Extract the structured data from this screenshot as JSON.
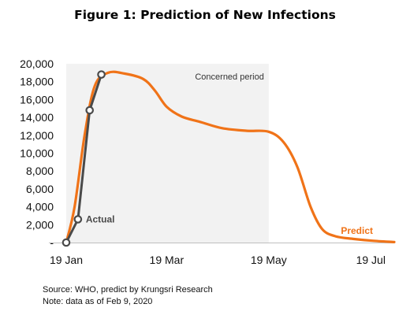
{
  "title": "Figure 1: Prediction of New Infections",
  "source": "Source: WHO, predict by Krungsri Research",
  "note": "Note: data as of Feb 9, 2020",
  "colors": {
    "actual": "#4a4a4a",
    "predict": "#f07318",
    "shade": "#f2f2f2",
    "axis": "#bfbfbf"
  },
  "chart_data": {
    "type": "line",
    "xaxis": "date",
    "xlim": [
      "2020-01-19",
      "2020-08-02"
    ],
    "ylim": [
      0,
      20000
    ],
    "yticks": [
      0,
      2000,
      4000,
      6000,
      8000,
      10000,
      12000,
      14000,
      16000,
      18000,
      20000
    ],
    "ytick_labels": [
      "-",
      "2,000",
      "4,000",
      "6,000",
      "8,000",
      "10,000",
      "12,000",
      "14,000",
      "16,000",
      "18,000",
      "20,000"
    ],
    "xticks": [
      "2020-01-19",
      "2020-03-19",
      "2020-05-19",
      "2020-07-19"
    ],
    "xtick_labels": [
      "19 Jan",
      "19 Mar",
      "19 May",
      "19 Jul"
    ],
    "grid": false,
    "shaded_region": {
      "label": "Concerned period",
      "x_start": "2020-01-19",
      "x_end": "2020-05-19",
      "y_top": 20000
    },
    "series": [
      {
        "name": "Actual",
        "color": "#4a4a4a",
        "markers": true,
        "points": [
          {
            "x": "2020-01-19",
            "y": 0
          },
          {
            "x": "2020-01-26",
            "y": 2600
          },
          {
            "x": "2020-02-02",
            "y": 14800
          },
          {
            "x": "2020-02-09",
            "y": 18800
          }
        ]
      },
      {
        "name": "Predict",
        "color": "#f07318",
        "markers": false,
        "points": [
          {
            "x": "2020-01-19",
            "y": 0
          },
          {
            "x": "2020-01-24",
            "y": 4000
          },
          {
            "x": "2020-01-30",
            "y": 12000
          },
          {
            "x": "2020-02-05",
            "y": 17500
          },
          {
            "x": "2020-02-13",
            "y": 19000
          },
          {
            "x": "2020-02-23",
            "y": 18900
          },
          {
            "x": "2020-03-05",
            "y": 18300
          },
          {
            "x": "2020-03-12",
            "y": 17000
          },
          {
            "x": "2020-03-19",
            "y": 15200
          },
          {
            "x": "2020-03-28",
            "y": 14100
          },
          {
            "x": "2020-04-08",
            "y": 13500
          },
          {
            "x": "2020-04-21",
            "y": 12800
          },
          {
            "x": "2020-05-06",
            "y": 12500
          },
          {
            "x": "2020-05-19",
            "y": 12400
          },
          {
            "x": "2020-05-28",
            "y": 11200
          },
          {
            "x": "2020-06-05",
            "y": 8500
          },
          {
            "x": "2020-06-13",
            "y": 4000
          },
          {
            "x": "2020-06-20",
            "y": 1500
          },
          {
            "x": "2020-06-28",
            "y": 700
          },
          {
            "x": "2020-07-09",
            "y": 400
          },
          {
            "x": "2020-07-20",
            "y": 200
          },
          {
            "x": "2020-08-02",
            "y": 50
          }
        ]
      }
    ]
  }
}
